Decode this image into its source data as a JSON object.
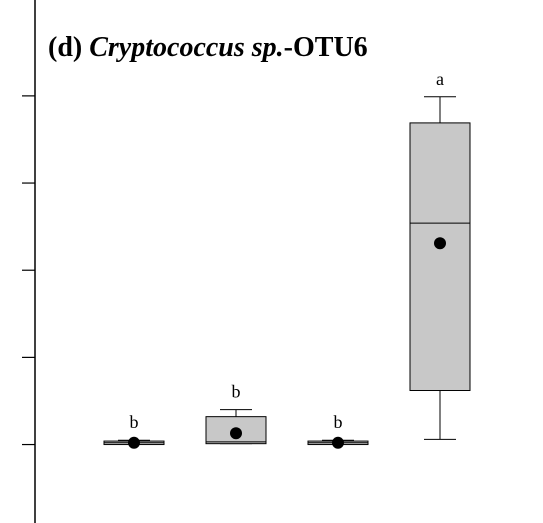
{
  "chart_data": {
    "type": "box",
    "title": [
      "(d) ",
      "Cryptococcus sp.",
      "-OTU6"
    ],
    "ylim": [
      -0.9,
      5.1
    ],
    "yticks": [
      0,
      1,
      2,
      3,
      4
    ],
    "box_color": "#c8c8c8",
    "boxes": [
      {
        "min": 0.0,
        "q1": 0.0,
        "median": 0.02,
        "q3": 0.04,
        "max": 0.05,
        "mean": 0.02,
        "letter": "b"
      },
      {
        "min": 0.01,
        "q1": 0.01,
        "median": 0.03,
        "q3": 0.32,
        "max": 0.4,
        "mean": 0.13,
        "letter": "b"
      },
      {
        "min": 0.0,
        "q1": 0.0,
        "median": 0.02,
        "q3": 0.04,
        "max": 0.05,
        "mean": 0.02,
        "letter": "b"
      },
      {
        "min": 0.06,
        "q1": 0.62,
        "median": 2.54,
        "q3": 3.69,
        "max": 3.99,
        "mean": 2.31,
        "letter": "a"
      }
    ]
  }
}
